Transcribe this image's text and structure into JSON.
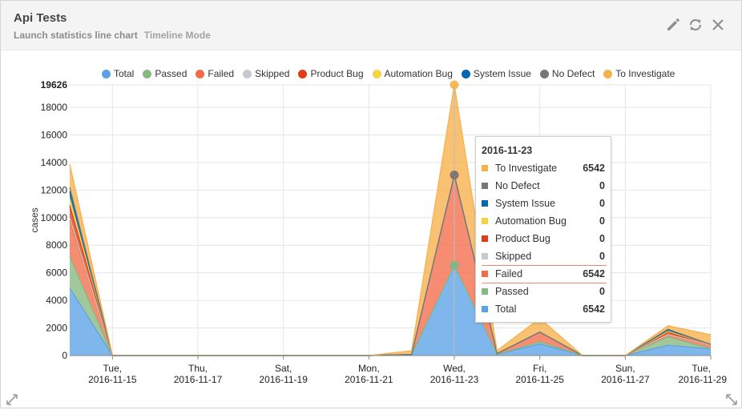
{
  "widget": {
    "title": "Api Tests",
    "subtitle": "Launch statistics line chart",
    "mode": "Timeline Mode"
  },
  "icons": {
    "edit": "pencil-icon",
    "refresh": "refresh-icon",
    "close": "close-icon",
    "resize_left": "resize-diagonal-icon",
    "resize_right": "resize-diagonal-icon"
  },
  "legend": [
    {
      "label": "Total",
      "color": "#5ba1e6"
    },
    {
      "label": "Passed",
      "color": "#87b87f"
    },
    {
      "label": "Failed",
      "color": "#f36c4a"
    },
    {
      "label": "Skipped",
      "color": "#c4cbd0"
    },
    {
      "label": "Product Bug",
      "color": "#e23c14"
    },
    {
      "label": "Automation Bug",
      "color": "#f5d342"
    },
    {
      "label": "System Issue",
      "color": "#0068b0"
    },
    {
      "label": "No Defect",
      "color": "#777777"
    },
    {
      "label": "To Investigate",
      "color": "#f7b04a"
    }
  ],
  "tooltip": {
    "date": "2016-11-23",
    "rows": [
      {
        "name": "To Investigate",
        "value": "6542",
        "color": "#f7b04a"
      },
      {
        "name": "No Defect",
        "value": "0",
        "color": "#777777"
      },
      {
        "name": "System Issue",
        "value": "0",
        "color": "#0068b0"
      },
      {
        "name": "Automation Bug",
        "value": "0",
        "color": "#f5d342"
      },
      {
        "name": "Product Bug",
        "value": "0",
        "color": "#e23c14"
      },
      {
        "name": "Skipped",
        "value": "0",
        "color": "#c4cbd0"
      },
      {
        "name": "Failed",
        "value": "6542",
        "color": "#f36c4a"
      },
      {
        "name": "Passed",
        "value": "0",
        "color": "#87b87f"
      },
      {
        "name": "Total",
        "value": "6542",
        "color": "#5ba1e6"
      }
    ]
  },
  "chart_data": {
    "type": "area",
    "stacked": true,
    "ylabel": "cases",
    "ylim": [
      0,
      19626
    ],
    "yticks": [
      0,
      2000,
      4000,
      6000,
      8000,
      10000,
      12000,
      14000,
      16000,
      18000,
      19626
    ],
    "x": [
      "2016-11-14",
      "2016-11-15",
      "2016-11-16",
      "2016-11-17",
      "2016-11-18",
      "2016-11-19",
      "2016-11-20",
      "2016-11-21",
      "2016-11-22",
      "2016-11-23",
      "2016-11-24",
      "2016-11-25",
      "2016-11-26",
      "2016-11-27",
      "2016-11-28",
      "2016-11-29"
    ],
    "xticks": [
      {
        "date": "2016-11-15",
        "line1": "Tue,",
        "line2": "2016-11-15"
      },
      {
        "date": "2016-11-17",
        "line1": "Thu,",
        "line2": "2016-11-17"
      },
      {
        "date": "2016-11-19",
        "line1": "Sat,",
        "line2": "2016-11-19"
      },
      {
        "date": "2016-11-21",
        "line1": "Mon,",
        "line2": "2016-11-21"
      },
      {
        "date": "2016-11-23",
        "line1": "Wed,",
        "line2": "2016-11-23"
      },
      {
        "date": "2016-11-25",
        "line1": "Fri,",
        "line2": "2016-11-25"
      },
      {
        "date": "2016-11-27",
        "line1": "Sun,",
        "line2": "2016-11-27"
      },
      {
        "date": "2016-11-29",
        "line1": "Tue,",
        "line2": "2016-11-29"
      }
    ],
    "series": [
      {
        "name": "Total",
        "color": "#5ba1e6",
        "values": [
          4900,
          0,
          0,
          0,
          0,
          0,
          0,
          0,
          50,
          6542,
          80,
          850,
          0,
          0,
          750,
          480
        ]
      },
      {
        "name": "Passed",
        "color": "#87b87f",
        "values": [
          2300,
          0,
          0,
          0,
          0,
          0,
          0,
          0,
          0,
          0,
          0,
          150,
          0,
          0,
          600,
          20
        ]
      },
      {
        "name": "Failed",
        "color": "#f36c4a",
        "values": [
          2600,
          0,
          0,
          0,
          0,
          0,
          0,
          0,
          30,
          6542,
          60,
          700,
          0,
          0,
          150,
          250
        ]
      },
      {
        "name": "Skipped",
        "color": "#c4cbd0",
        "values": [
          200,
          0,
          0,
          0,
          0,
          0,
          0,
          0,
          0,
          0,
          0,
          0,
          0,
          0,
          20,
          10
        ]
      },
      {
        "name": "Product Bug",
        "color": "#e23c14",
        "values": [
          900,
          0,
          0,
          0,
          0,
          0,
          0,
          0,
          0,
          0,
          0,
          0,
          0,
          0,
          150,
          50
        ]
      },
      {
        "name": "Automation Bug",
        "color": "#f5d342",
        "values": [
          500,
          0,
          0,
          0,
          0,
          0,
          0,
          0,
          0,
          0,
          0,
          0,
          0,
          0,
          80,
          0
        ]
      },
      {
        "name": "System Issue",
        "color": "#0068b0",
        "values": [
          500,
          0,
          0,
          0,
          0,
          0,
          0,
          0,
          0,
          0,
          0,
          0,
          0,
          0,
          100,
          0
        ]
      },
      {
        "name": "No Defect",
        "color": "#777777",
        "values": [
          300,
          0,
          0,
          0,
          0,
          0,
          0,
          0,
          0,
          0,
          0,
          0,
          0,
          0,
          60,
          0
        ]
      },
      {
        "name": "To Investigate",
        "color": "#f7b04a",
        "values": [
          1700,
          0,
          0,
          0,
          0,
          0,
          0,
          0,
          270,
          6542,
          220,
          1000,
          0,
          0,
          250,
          700
        ]
      }
    ],
    "grid": true,
    "legend": "top",
    "hover": {
      "date": "2016-11-23"
    }
  }
}
